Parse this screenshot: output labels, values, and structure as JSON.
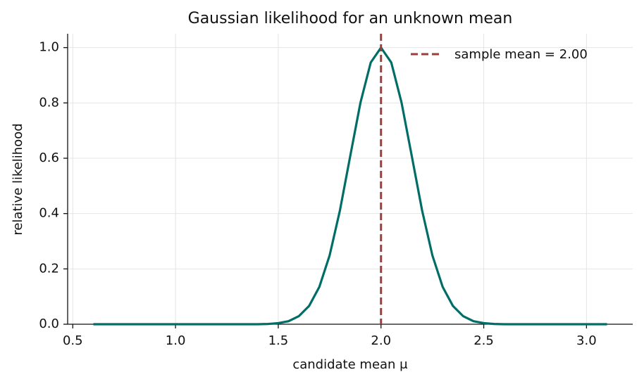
{
  "chart_data": {
    "type": "line",
    "title": "Gaussian likelihood for an unknown mean",
    "x_label": "candidate mean μ",
    "y_label": "relative likelihood",
    "x": [
      0.6,
      0.65,
      0.7,
      0.75,
      0.8,
      0.85,
      0.9,
      0.95,
      1.0,
      1.05,
      1.1,
      1.15,
      1.2,
      1.25,
      1.3,
      1.35,
      1.4,
      1.45,
      1.5,
      1.55,
      1.6,
      1.65,
      1.7,
      1.75,
      1.8,
      1.85,
      1.9,
      1.95,
      2.0,
      2.05,
      2.1,
      2.15,
      2.2,
      2.25,
      2.3,
      2.35,
      2.4,
      2.45,
      2.5,
      2.55,
      2.6,
      2.65,
      2.7,
      2.75,
      2.8,
      2.85,
      2.9,
      2.95,
      3.0,
      3.05,
      3.1
    ],
    "series": [
      {
        "name": "likelihood",
        "color": "#006d67",
        "values": [
          0,
          0,
          0,
          0,
          0,
          0,
          0,
          0,
          0,
          0,
          0,
          0,
          0,
          0,
          0,
          0,
          0,
          0.001,
          0.004,
          0.011,
          0.029,
          0.066,
          0.135,
          0.249,
          0.411,
          0.607,
          0.801,
          0.946,
          1,
          0.946,
          0.801,
          0.607,
          0.411,
          0.249,
          0.135,
          0.066,
          0.029,
          0.011,
          0.004,
          0.001,
          0,
          0,
          0,
          0,
          0,
          0,
          0,
          0,
          0,
          0,
          0
        ]
      }
    ],
    "reference_line": {
      "x": 2.0,
      "label": "sample mean = 2.00",
      "color": "#9e3d3a"
    },
    "xlim": [
      0.475,
      3.225
    ],
    "ylim": [
      0,
      1.05
    ],
    "xticks": [
      0.5,
      {
        "value": 1,
        "label": "1.0"
      },
      1.5,
      {
        "value": 2,
        "label": "2.0"
      },
      2.5,
      {
        "value": 3,
        "label": "3.0"
      }
    ],
    "yticks": [
      {
        "value": 0,
        "label": "0.0"
      },
      0.2,
      0.4,
      0.6,
      0.8,
      {
        "value": 1,
        "label": "1.0"
      }
    ],
    "grid": true,
    "legend": "upper right"
  }
}
